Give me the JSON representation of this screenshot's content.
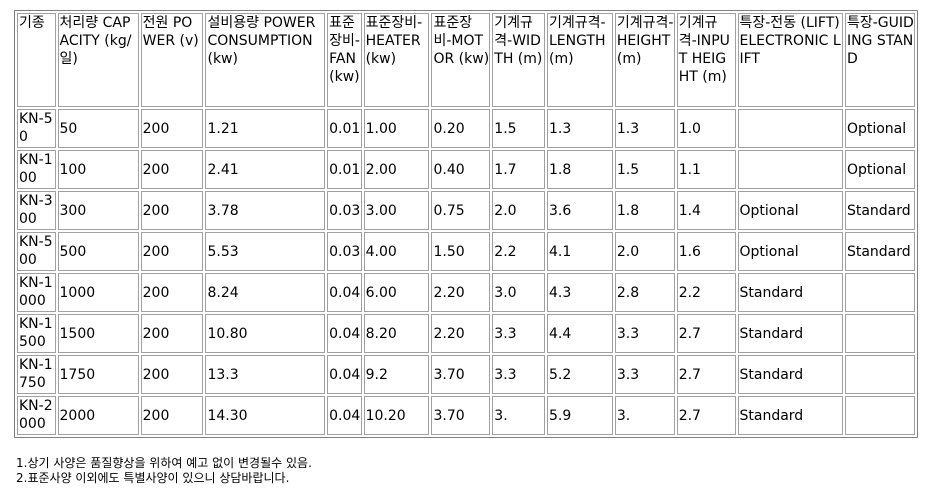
{
  "table": {
    "headers": [
      "기종",
      "처리량 CAPACITY (kg/일)",
      "전원 POWER (v)",
      "설비용량 POWER CONSUMPTION (kw)",
      "표준장비-FAN (kw)",
      "표준장비-HEATER (kw)",
      "표준장비-MOTOR (kw)",
      "기계규격-WIDTH (m)",
      "기계규격-LENGTH (m)",
      "기계규격-HEIGHT (m)",
      "기계규격-INPUT HEIGHT (m)",
      "특장-전동 (LIFT) ELECTRONIC LIFT",
      "특장-GUIDING STAND"
    ],
    "rows": [
      [
        "KN-50",
        "50",
        "200",
        "1.21",
        "0.01",
        "1.00",
        "0.20",
        "1.5",
        "1.3",
        "1.3",
        "1.0",
        "",
        "Optional"
      ],
      [
        "KN-100",
        "100",
        "200",
        "2.41",
        "0.01",
        "2.00",
        "0.40",
        "1.7",
        "1.8",
        "1.5",
        "1.1",
        "",
        "Optional"
      ],
      [
        "KN-300",
        "300",
        "200",
        "3.78",
        "0.03",
        "3.00",
        "0.75",
        "2.0",
        "3.6",
        "1.8",
        "1.4",
        "Optional",
        "Standard"
      ],
      [
        "KN-500",
        "500",
        "200",
        "5.53",
        "0.03",
        "4.00",
        "1.50",
        "2.2",
        "4.1",
        "2.0",
        "1.6",
        "Optional",
        "Standard"
      ],
      [
        "KN-1000",
        "1000",
        "200",
        "8.24",
        "0.04",
        "6.00",
        "2.20",
        "3.0",
        "4.3",
        "2.8",
        "2.2",
        "Standard",
        ""
      ],
      [
        "KN-1500",
        "1500",
        "200",
        "10.80",
        "0.04",
        "8.20",
        "2.20",
        "3.3",
        "4.4",
        "3.3",
        "2.7",
        "Standard",
        ""
      ],
      [
        "KN-1750",
        "1750",
        "200",
        "13.3",
        "0.04",
        "9.2",
        "3.70",
        "3.3",
        "5.2",
        "3.3",
        "2.7",
        "Standard",
        ""
      ],
      [
        "KN-2000",
        "2000",
        "200",
        "14.30",
        "0.04",
        "10.20",
        "3.70",
        "3.",
        "5.9",
        "3.",
        "2.7",
        "Standard",
        ""
      ]
    ]
  },
  "notes": [
    "1.상기 사양은 품질향상을 위하여 예고 없이 변경될수 있음.",
    "2.표준사양 이외에도 특별사양이 있으니 상담바랍니다."
  ]
}
